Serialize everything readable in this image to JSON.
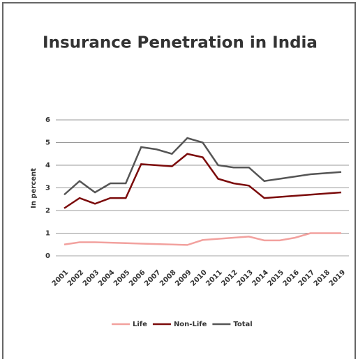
{
  "chart_data": {
    "type": "line",
    "title": "Insurance Penetration in India",
    "y_label": "In percent",
    "categories": [
      "2001",
      "2002",
      "2003",
      "2004",
      "2005",
      "2006",
      "2007",
      "2008",
      "2009",
      "2010",
      "2011",
      "2012",
      "2013",
      "2014",
      "2015",
      "2016",
      "2017",
      "2018",
      "2019"
    ],
    "series": [
      {
        "name": "Life",
        "color": "#f2a19e",
        "values": [
          0.5,
          0.6,
          0.6,
          0.58,
          0.56,
          0.54,
          0.52,
          0.5,
          0.48,
          0.7,
          0.75,
          0.8,
          0.85,
          0.68,
          0.68,
          0.8,
          1.0,
          1.0,
          1.0
        ]
      },
      {
        "name": "Non-Life",
        "color": "#7b0a0a",
        "values": [
          2.1,
          2.55,
          2.3,
          2.55,
          2.55,
          4.05,
          4.0,
          3.95,
          4.5,
          4.35,
          3.4,
          3.2,
          3.1,
          2.55,
          2.6,
          2.65,
          2.7,
          2.75,
          2.8
        ]
      },
      {
        "name": "Total",
        "color": "#555555",
        "values": [
          2.7,
          3.3,
          2.8,
          3.2,
          3.2,
          4.8,
          4.7,
          4.5,
          5.2,
          5.0,
          4.0,
          3.9,
          3.9,
          3.3,
          3.4,
          3.5,
          3.6,
          3.65,
          3.7
        ]
      }
    ],
    "ylim": [
      0,
      6
    ],
    "yticks": [
      0,
      1,
      2,
      3,
      4,
      5,
      6
    ],
    "grid": true
  }
}
